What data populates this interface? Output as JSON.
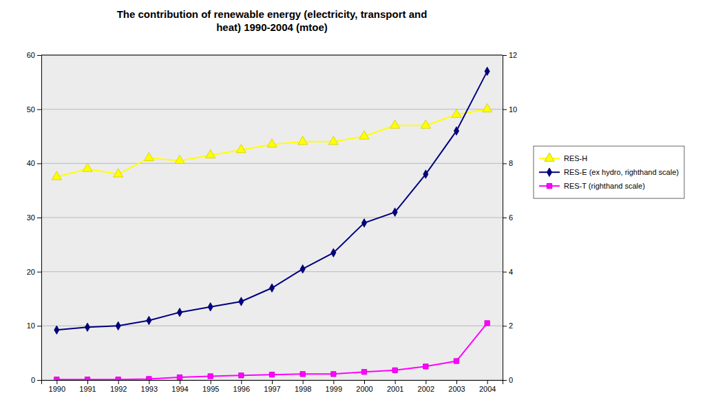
{
  "chart_data": {
    "type": "line",
    "title": "The contribution of renewable energy (electricity, transport and\nheat) 1990-2004 (mtoe)",
    "x": [
      1990,
      1991,
      1992,
      1993,
      1994,
      1995,
      1996,
      1997,
      1998,
      1999,
      2000,
      2001,
      2002,
      2003,
      2004
    ],
    "xlim": [
      1989.5,
      2004.5
    ],
    "xticks": [
      1990,
      1991,
      1992,
      1993,
      1994,
      1995,
      1996,
      1997,
      1998,
      1999,
      2000,
      2001,
      2002,
      2003,
      2004
    ],
    "ylim": [
      0,
      60
    ],
    "yticks": [
      0,
      10,
      20,
      30,
      40,
      50,
      60
    ],
    "y2lim": [
      0,
      12
    ],
    "y2ticks": [
      0,
      2,
      4,
      6,
      8,
      10,
      12
    ],
    "grid": true,
    "legend": "right",
    "series": [
      {
        "name": "RES-H",
        "color": "#ffff00",
        "marker": "triangle",
        "values": [
          37.5,
          39.0,
          38.0,
          41.0,
          40.5,
          41.5,
          42.5,
          43.5,
          44.0,
          44.0,
          45.0,
          47.0,
          47.0,
          49.0,
          50.0
        ]
      },
      {
        "name": "RES-E (ex hydro, righthand scale)",
        "color": "#000080",
        "marker": "diamond",
        "axis": "y2",
        "values": [
          1.85,
          1.95,
          2.0,
          2.2,
          2.5,
          2.7,
          2.9,
          3.4,
          4.1,
          4.7,
          5.8,
          6.2,
          7.6,
          9.2,
          11.4
        ]
      },
      {
        "name": "RES-T (righthand scale)",
        "color": "#ff00ff",
        "marker": "square",
        "axis": "y2",
        "values": [
          0.02,
          0.02,
          0.02,
          0.04,
          0.1,
          0.14,
          0.17,
          0.2,
          0.22,
          0.22,
          0.3,
          0.36,
          0.5,
          0.7,
          2.1
        ]
      }
    ]
  }
}
